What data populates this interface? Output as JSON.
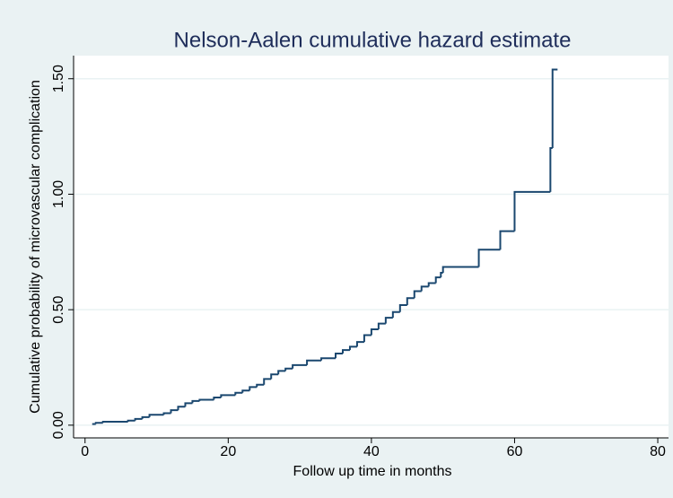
{
  "chart_data": {
    "type": "line",
    "step": "post",
    "title": "Nelson-Aalen cumulative hazard estimate",
    "xlabel": "Follow up time in months",
    "ylabel": "Cumulative probability of microvascular complication",
    "x": [
      1,
      1.5,
      2.5,
      6,
      7,
      8,
      9,
      11,
      12,
      13,
      14,
      15,
      16,
      18,
      19,
      21,
      22,
      23,
      24,
      25,
      26,
      27,
      28,
      29,
      31,
      33,
      35,
      36,
      37,
      38,
      39,
      40,
      41,
      42,
      43,
      44,
      45,
      46,
      47,
      48,
      49,
      49.7,
      50,
      55,
      58,
      60,
      65,
      65.3,
      66
    ],
    "series": [
      {
        "color": "#1a476f",
        "values": [
          0.005,
          0.01,
          0.015,
          0.02,
          0.027,
          0.035,
          0.045,
          0.052,
          0.065,
          0.08,
          0.095,
          0.105,
          0.11,
          0.12,
          0.13,
          0.14,
          0.15,
          0.165,
          0.175,
          0.2,
          0.22,
          0.235,
          0.245,
          0.26,
          0.28,
          0.29,
          0.31,
          0.325,
          0.34,
          0.36,
          0.39,
          0.415,
          0.44,
          0.465,
          0.49,
          0.52,
          0.55,
          0.58,
          0.6,
          0.615,
          0.64,
          0.66,
          0.685,
          0.76,
          0.84,
          1.01,
          1.2,
          1.54,
          1.54
        ]
      }
    ],
    "xlim": [
      -1.6,
      81.5
    ],
    "ylim": [
      -0.055,
      1.6
    ],
    "xticks": [
      0,
      20,
      40,
      60,
      80
    ],
    "yticks": [
      {
        "value": 0,
        "label": "0.00"
      },
      {
        "value": 0.5,
        "label": "0.50"
      },
      {
        "value": 1,
        "label": "1.00"
      },
      {
        "value": 1.5,
        "label": "1.50"
      }
    ],
    "grid": true
  }
}
